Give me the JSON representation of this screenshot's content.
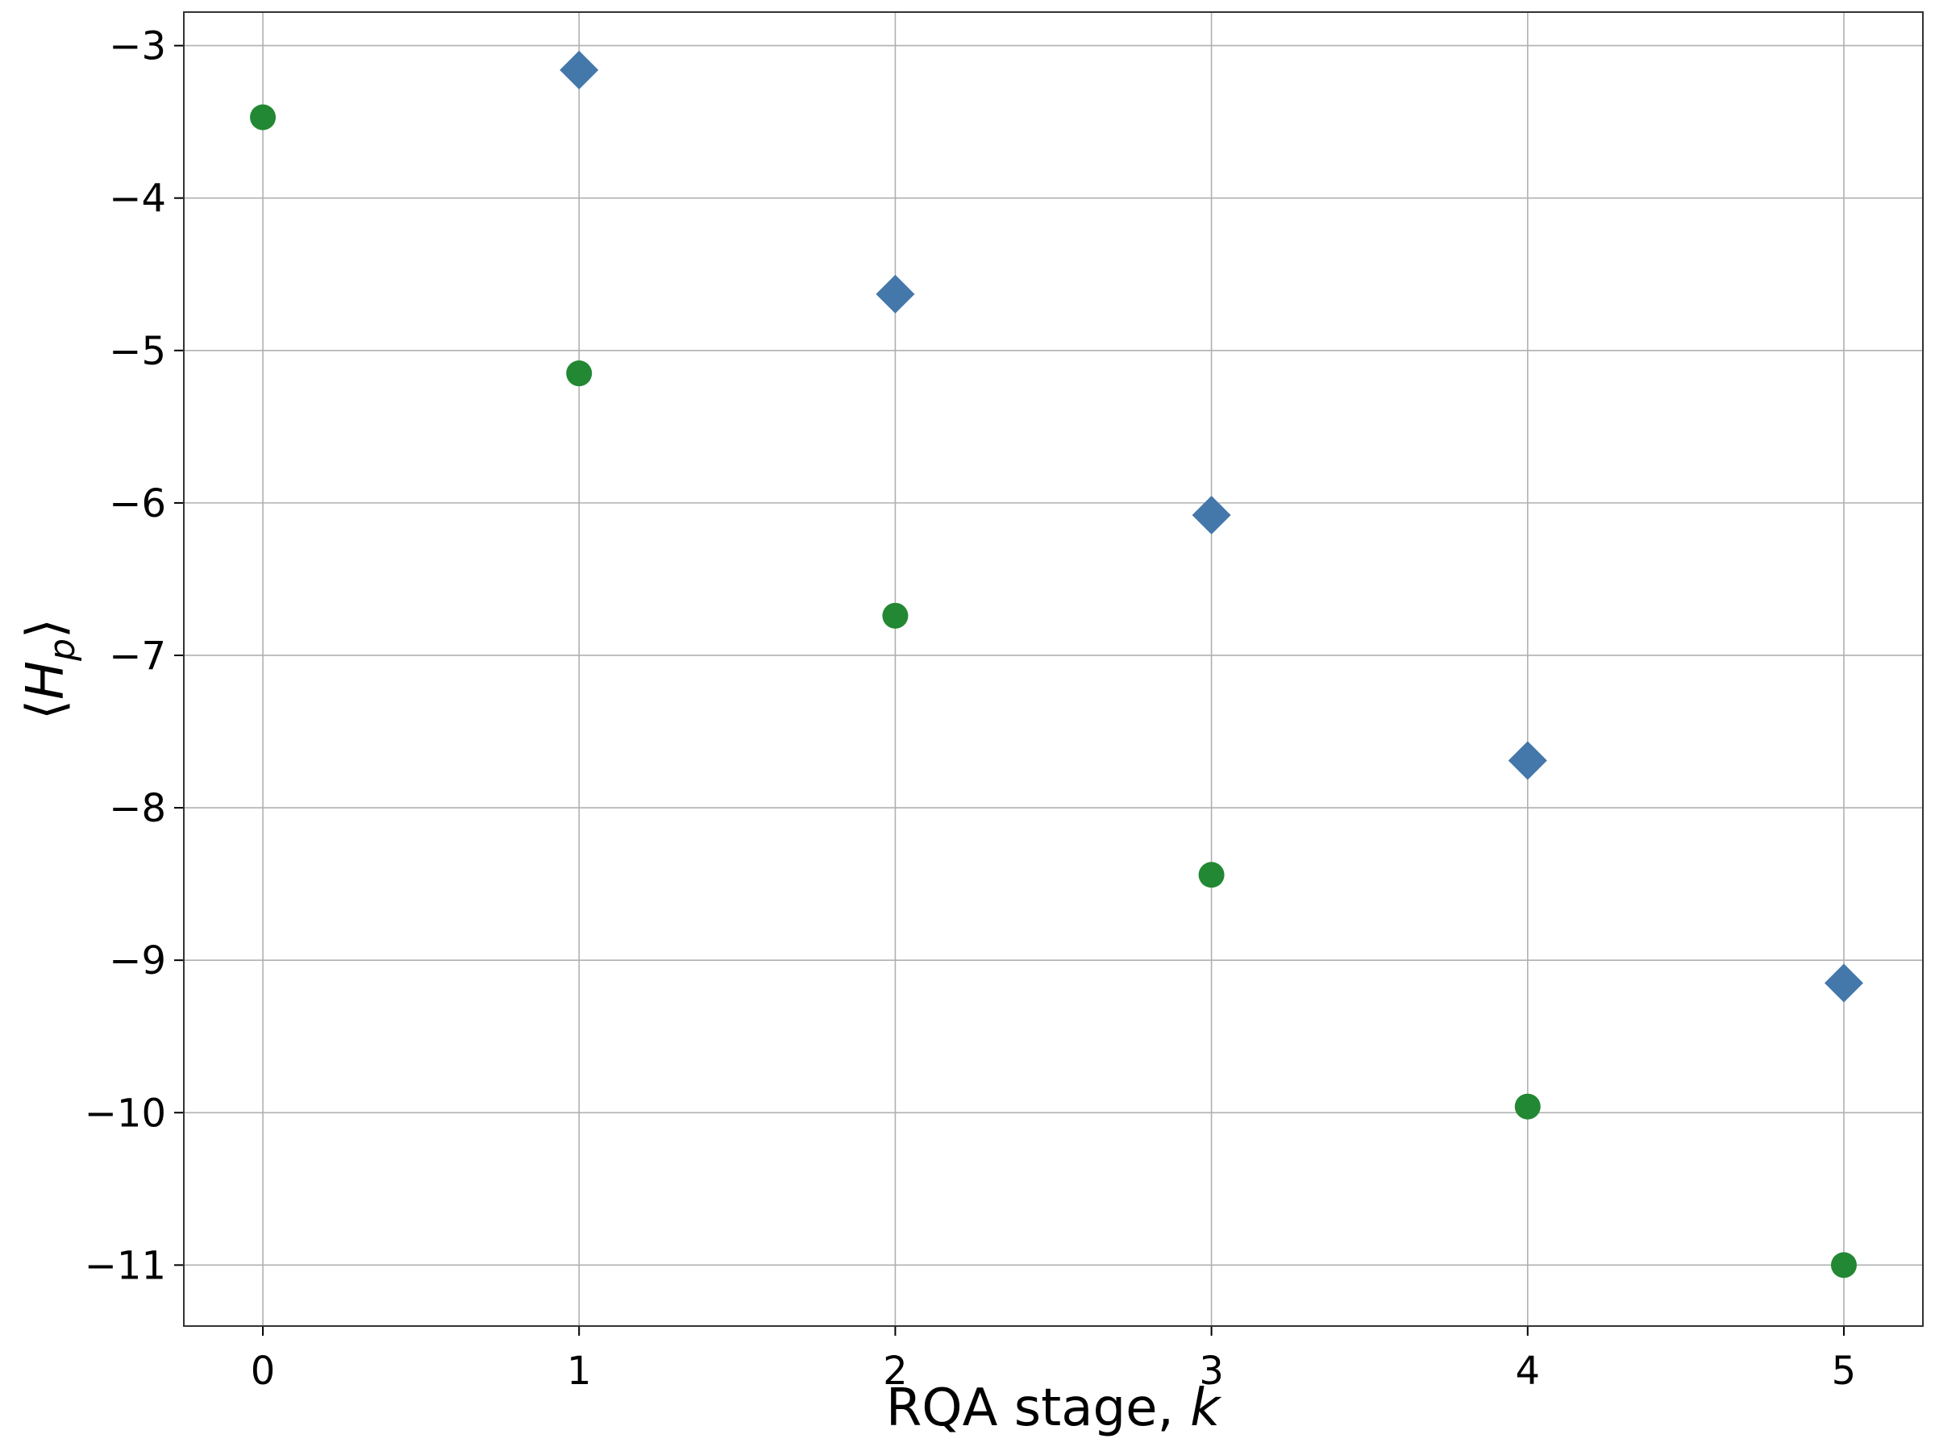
{
  "chart_data": {
    "type": "scatter",
    "title": "",
    "xlabel": {
      "main": "RQA stage, ",
      "var": "k"
    },
    "ylabel": {
      "open": "⟨",
      "var": "H",
      "sub": "p",
      "close": "⟩"
    },
    "xlim": [
      -0.25,
      5.25
    ],
    "ylim": [
      -11.4,
      -2.78
    ],
    "xticks": [
      0,
      1,
      2,
      3,
      4,
      5
    ],
    "xtick_labels": [
      "0",
      "1",
      "2",
      "3",
      "4",
      "5"
    ],
    "yticks": [
      -3,
      -4,
      -5,
      -6,
      -7,
      -8,
      -9,
      -10,
      -11
    ],
    "ytick_labels": [
      "−3",
      "−4",
      "−5",
      "−6",
      "−7",
      "−8",
      "−9",
      "−10",
      "−11"
    ],
    "grid": true,
    "legend": "none",
    "series": [
      {
        "marker": "circle",
        "color": "#228833",
        "points": [
          {
            "x": 0,
            "y": -3.47
          },
          {
            "x": 1,
            "y": -5.15
          },
          {
            "x": 2,
            "y": -6.74
          },
          {
            "x": 3,
            "y": -8.44
          },
          {
            "x": 4,
            "y": -9.96
          },
          {
            "x": 5,
            "y": -11.0
          }
        ]
      },
      {
        "marker": "diamond",
        "color": "#4477aa",
        "points": [
          {
            "x": 1,
            "y": -3.16
          },
          {
            "x": 2,
            "y": -4.63
          },
          {
            "x": 3,
            "y": -6.08
          },
          {
            "x": 4,
            "y": -7.69
          },
          {
            "x": 5,
            "y": -9.15
          }
        ]
      }
    ]
  }
}
